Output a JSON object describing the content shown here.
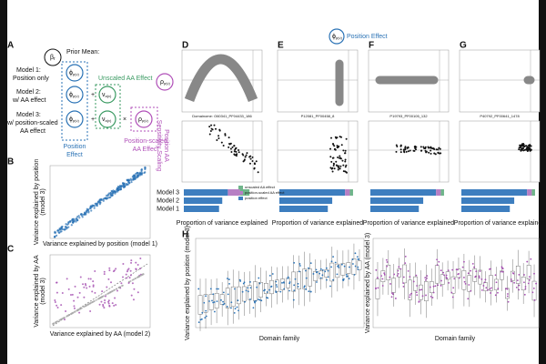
{
  "panel_a": {
    "label": "A",
    "beta": "β",
    "beta_sub": "r",
    "prior": "Prior Mean:",
    "models": [
      [
        "Model 1:",
        "Position only"
      ],
      [
        "Model 2:",
        "w/ AA effect"
      ],
      [
        "Model 3:",
        "w/ position-scaled",
        "AA effect"
      ]
    ],
    "phi": "ϕ",
    "phi_sub": "p(v)",
    "nu": "ν",
    "nu_sub": "a(v)",
    "rho": "ρ",
    "rho_sub": "p(v)",
    "plus": "+",
    "times": "×",
    "unscaled": "Unscaled AA Effect",
    "position_effect": [
      "Position",
      "Effect"
    ],
    "scaled": [
      "Position-scaled",
      "AA Effect"
    ]
  },
  "panel_b": {
    "label": "B",
    "ylabel": [
      "Variance explained by position",
      "(model 3)"
    ],
    "xlabel": "Variance explained by position (model 1)"
  },
  "panel_c": {
    "label": "C",
    "ylabel": [
      "Variance explained by AA",
      "(model 3)"
    ],
    "xlabel": "Variance explained by AA (model 2)"
  },
  "top": {
    "title": "Position Effect",
    "side": [
      "Position AA",
      "Sensitivity Scaling"
    ]
  },
  "domains": [
    {
      "label": "D",
      "name": "Domainome: O60341_PF04433_186"
    },
    {
      "label": "E",
      "name": "P12081_PF00458_8"
    },
    {
      "label": "F",
      "name": "P19793_PF00105_132"
    },
    {
      "label": "G",
      "name": "P40792_PF00641_1478"
    }
  ],
  "bars": {
    "models": [
      "Model 3",
      "Model 2",
      "Model 1"
    ],
    "xlabel": "Proportion of variance explained",
    "legend": [
      "unscaled AA effect",
      "position-scaled AA effect",
      "position effect"
    ]
  },
  "panel_h": {
    "label": "H",
    "left_ylabel": "Variance explained by position (model 3)",
    "right_ylabel": "Variance explained by AA (model 3)",
    "xlabel": "Domain family"
  }
}
